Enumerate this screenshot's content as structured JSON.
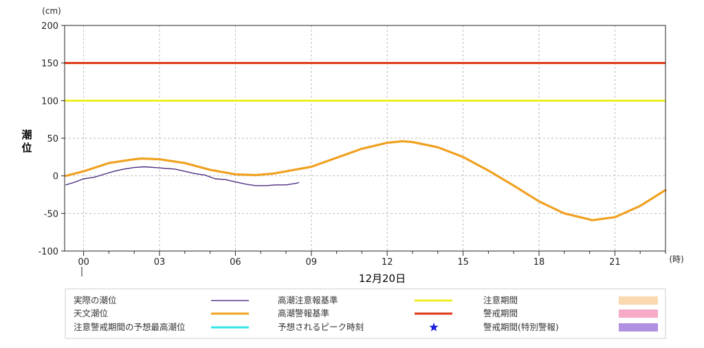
{
  "chart_data": {
    "type": "line",
    "y_unit": "(cm)",
    "ylabel": "潮位",
    "x_unit": "(時)",
    "date_label": "12月20日",
    "ylim": [
      -100,
      200
    ],
    "yticks": [
      200,
      150,
      100,
      50,
      0,
      -50,
      -100
    ],
    "xlim": [
      -0.75,
      23.0
    ],
    "xticks": [
      {
        "v": 0,
        "label": "00"
      },
      {
        "v": 3,
        "label": "03"
      },
      {
        "v": 6,
        "label": "06"
      },
      {
        "v": 9,
        "label": "09"
      },
      {
        "v": 12,
        "label": "12"
      },
      {
        "v": 15,
        "label": "15"
      },
      {
        "v": 18,
        "label": "18"
      },
      {
        "v": 21,
        "label": "21"
      }
    ],
    "grid": true,
    "thresholds": [
      {
        "name": "高潮警報基準",
        "value": 150,
        "color": "#dd3311"
      },
      {
        "name": "高潮注意報基準",
        "value": 100,
        "color": "#eeee22"
      }
    ],
    "series": [
      {
        "name": "天文潮位",
        "color": "#f0a020",
        "x": [
          -0.7,
          0,
          1,
          2,
          2.3,
          3,
          4,
          5,
          6,
          6.8,
          7.5,
          8.5,
          9,
          10,
          11,
          12,
          12.6,
          13,
          14,
          15,
          16,
          17,
          18,
          19,
          20,
          20.1,
          21,
          22,
          23
        ],
        "y": [
          0,
          6,
          17,
          22,
          23,
          22,
          17,
          8,
          2,
          1,
          3,
          9,
          12,
          24,
          36,
          44,
          46,
          45,
          38,
          25,
          7,
          -13,
          -34,
          -50,
          -58,
          -59,
          -55,
          -40,
          -19
        ]
      },
      {
        "name": "実際の潮位",
        "color": "#4a2a80",
        "x": [
          -0.7,
          -0.4,
          0,
          0.4,
          0.8,
          1.2,
          1.6,
          2.0,
          2.4,
          2.8,
          3.2,
          3.6,
          4.0,
          4.4,
          4.8,
          5.2,
          5.6,
          6.0,
          6.4,
          6.8,
          7.2,
          7.6,
          8.0,
          8.4,
          8.5
        ],
        "y": [
          -12,
          -9,
          -4,
          -2,
          2,
          6,
          9,
          11,
          12,
          11,
          10,
          9,
          6,
          3,
          1,
          -4,
          -5,
          -8,
          -11,
          -13,
          -13,
          -12,
          -12,
          -10,
          -9
        ]
      }
    ],
    "legend": {
      "placement": "bottom",
      "items": [
        {
          "label": "実際の潮位",
          "kind": "line",
          "color": "#5a3a92"
        },
        {
          "label": "高潮注意報基準",
          "kind": "line",
          "color": "#eeee22"
        },
        {
          "label": "注意期間",
          "kind": "box",
          "color": "#fbd9b0"
        },
        {
          "label": "天文潮位",
          "kind": "line",
          "color": "#f0a020"
        },
        {
          "label": "高潮警報基準",
          "kind": "line",
          "color": "#dd3311"
        },
        {
          "label": "警戒期間",
          "kind": "box",
          "color": "#f6aac8"
        },
        {
          "label": "注意警戒期間の予想最高潮位",
          "kind": "line",
          "color": "#33e6e6"
        },
        {
          "label": "予想されるピーク時刻",
          "kind": "star",
          "color": "#1a1ae0"
        },
        {
          "label": "警戒期間(特別警報)",
          "kind": "box",
          "color": "#b090e0"
        }
      ]
    }
  }
}
